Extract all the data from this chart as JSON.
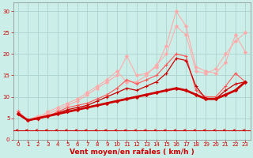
{
  "background_color": "#cceee8",
  "grid_color": "#aad4ce",
  "x_values": [
    0,
    1,
    2,
    3,
    4,
    5,
    6,
    7,
    8,
    9,
    10,
    11,
    12,
    13,
    14,
    15,
    16,
    17,
    18,
    19,
    20,
    21,
    22,
    23
  ],
  "series": [
    {
      "color": "#ffaaaa",
      "linewidth": 0.8,
      "marker": "D",
      "markersize": 2.0,
      "y": [
        6.5,
        4.5,
        5.5,
        6.0,
        7.0,
        8.0,
        9.0,
        10.5,
        12.0,
        13.5,
        15.0,
        19.5,
        15.0,
        15.5,
        17.0,
        22.0,
        30.0,
        26.5,
        17.0,
        16.0,
        15.5,
        18.0,
        24.5,
        20.5
      ]
    },
    {
      "color": "#ffaaaa",
      "linewidth": 0.7,
      "marker": "D",
      "markersize": 2.0,
      "y": [
        6.5,
        4.5,
        5.0,
        6.5,
        7.5,
        8.5,
        9.5,
        11.0,
        12.5,
        14.0,
        16.0,
        13.5,
        13.5,
        15.0,
        17.5,
        20.0,
        26.5,
        24.5,
        16.0,
        15.5,
        16.5,
        20.0,
        23.0,
        25.0
      ]
    },
    {
      "color": "#ff5555",
      "linewidth": 0.8,
      "marker": "+",
      "markersize": 3.0,
      "y": [
        6.5,
        4.5,
        4.8,
        5.5,
        6.5,
        7.5,
        8.0,
        8.5,
        9.5,
        10.5,
        12.0,
        14.0,
        13.0,
        14.0,
        15.0,
        17.5,
        20.0,
        19.5,
        11.5,
        10.0,
        10.0,
        12.5,
        15.5,
        13.5
      ]
    },
    {
      "color": "#cc0000",
      "linewidth": 0.9,
      "marker": "+",
      "markersize": 3.0,
      "y": [
        6.0,
        4.5,
        5.0,
        5.5,
        6.2,
        7.0,
        7.5,
        8.0,
        9.0,
        10.0,
        11.0,
        12.0,
        11.5,
        12.5,
        13.5,
        15.5,
        19.0,
        18.5,
        12.5,
        9.5,
        9.5,
        11.5,
        13.0,
        13.5
      ]
    },
    {
      "color": "#cc0000",
      "linewidth": 2.0,
      "marker": "D",
      "markersize": 2.0,
      "y": [
        6.0,
        4.5,
        5.0,
        5.5,
        6.0,
        6.5,
        7.0,
        7.5,
        8.0,
        8.5,
        9.0,
        9.5,
        10.0,
        10.5,
        11.0,
        11.5,
        12.0,
        11.5,
        10.5,
        9.5,
        9.5,
        10.5,
        11.5,
        13.5
      ]
    }
  ],
  "xlabel": "Vent moyen/en rafales ( km/h )",
  "xlabel_color": "#cc0000",
  "xlabel_fontsize": 6.5,
  "yticks": [
    0,
    5,
    10,
    15,
    20,
    25,
    30
  ],
  "xtick_labels": [
    "0",
    "1",
    "2",
    "3",
    "4",
    "5",
    "6",
    "7",
    "8",
    "9",
    "10",
    "11",
    "12",
    "13",
    "14",
    "15",
    "16",
    "17",
    "18",
    "19",
    "20",
    "21",
    "22",
    "23"
  ],
  "tick_color": "#cc0000",
  "tick_fontsize": 5.0,
  "xlim": [
    -0.5,
    23.5
  ],
  "ylim": [
    0,
    32
  ],
  "arrow_color": "#cc0000",
  "axhline_color": "#cc0000",
  "axhline_y": 0
}
